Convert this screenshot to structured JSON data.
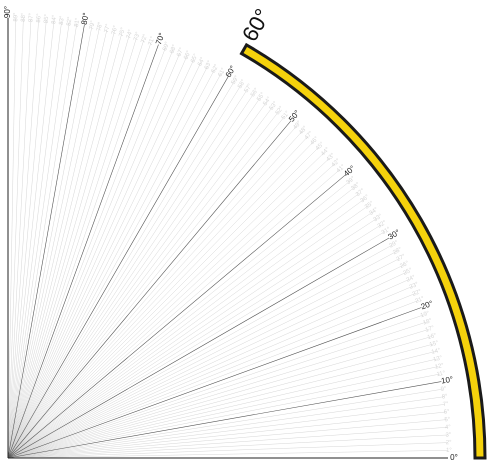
{
  "protractor": {
    "range_degrees": [
      0,
      90
    ],
    "major_step_degrees": 10,
    "minor_step_degrees": 1,
    "major_labels": [
      "0°",
      "10°",
      "20°",
      "30°",
      "40°",
      "50°",
      "60°",
      "70°",
      "80°",
      "90°"
    ],
    "minor_labels": [
      "1°",
      "2°",
      "3°",
      "4°",
      "5°",
      "6°",
      "7°",
      "8°",
      "9°",
      "11°",
      "12°",
      "13°",
      "14°",
      "15°",
      "16°",
      "17°",
      "18°",
      "19°",
      "21°",
      "22°",
      "23°",
      "24°",
      "25°",
      "26°",
      "27°",
      "28°",
      "29°",
      "31°",
      "32°",
      "33°",
      "34°",
      "35°",
      "36°",
      "37°",
      "38°",
      "39°",
      "41°",
      "42°",
      "43°",
      "44°",
      "45°",
      "46°",
      "47°",
      "48°",
      "49°",
      "51°",
      "52°",
      "53°",
      "54°",
      "55°",
      "56°",
      "57°",
      "58°",
      "59°",
      "61°",
      "62°",
      "63°",
      "64°",
      "65°",
      "66°",
      "67°",
      "68°",
      "69°",
      "71°",
      "72°",
      "73°",
      "74°",
      "75°",
      "76°",
      "77°",
      "78°",
      "79°",
      "81°",
      "82°",
      "83°",
      "84°",
      "85°",
      "86°",
      "87°",
      "88°",
      "89°"
    ],
    "major_line_color": "#555555",
    "minor_line_color": "#cccccc",
    "minor_label_color": "#d6d6d6"
  },
  "arc_indicator": {
    "angle_label": "60°",
    "angle_value_degrees": 60,
    "fill_color": "#f5d20c",
    "stroke_color": "#1a1a1a"
  }
}
